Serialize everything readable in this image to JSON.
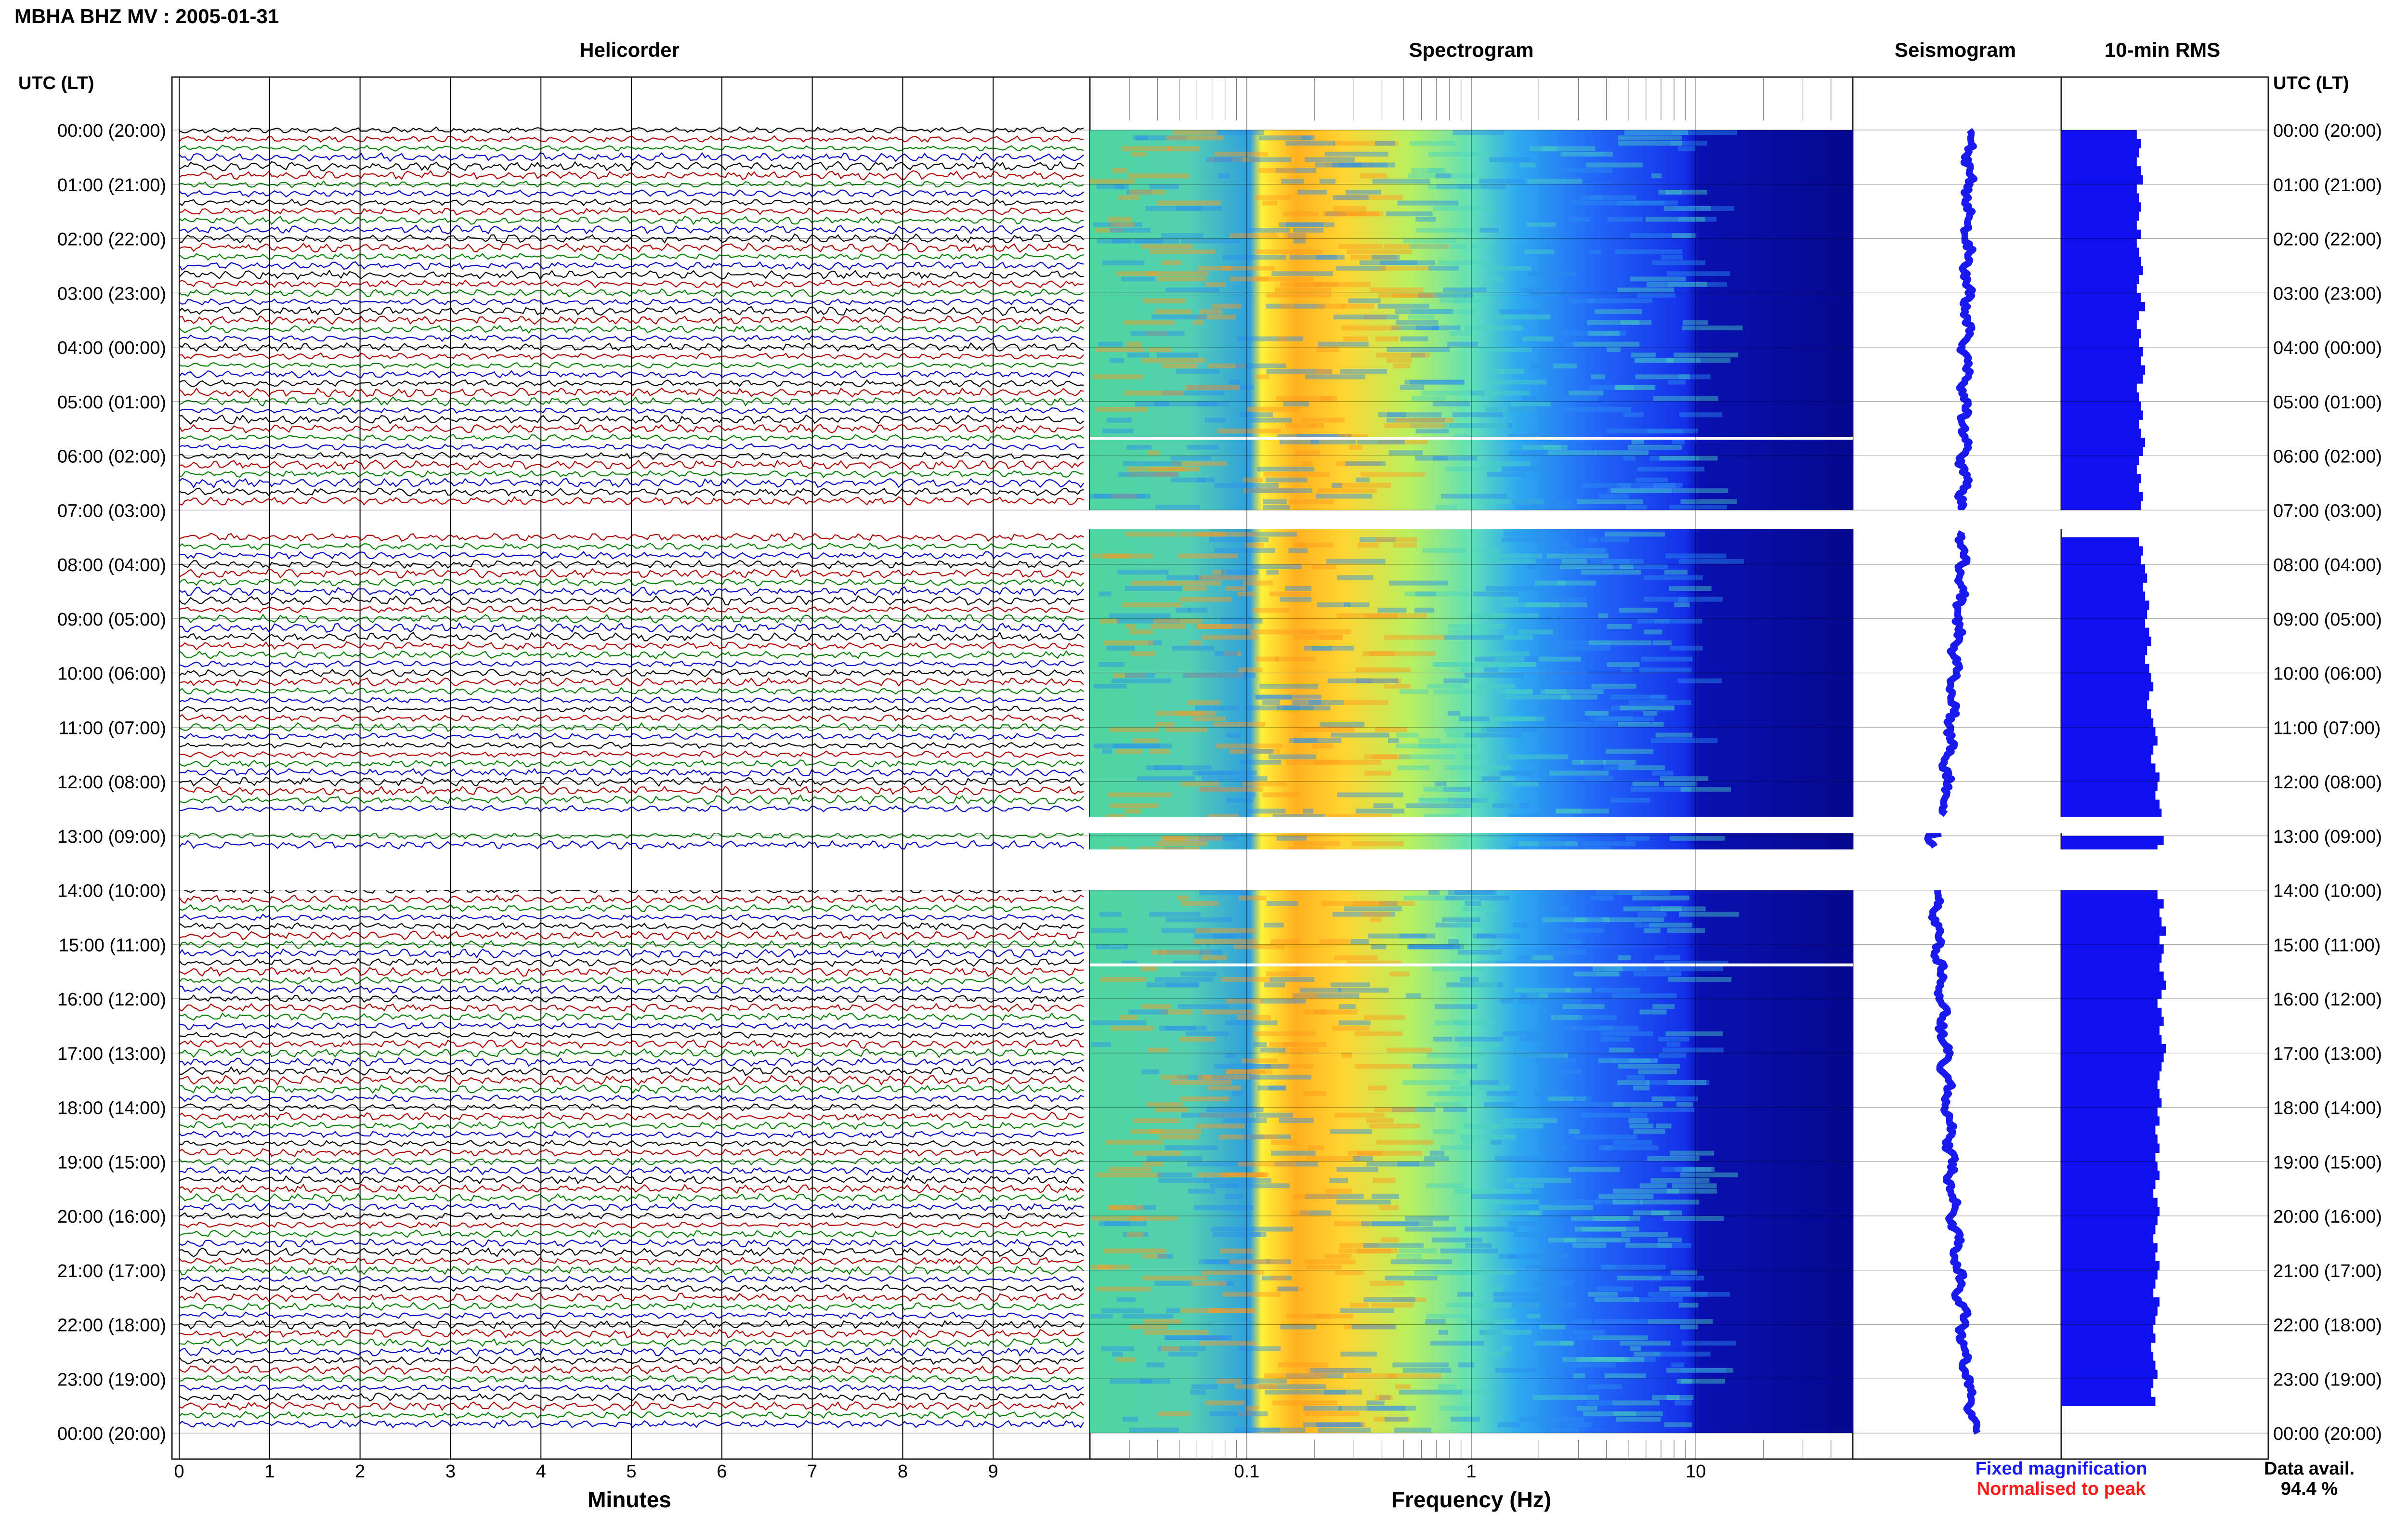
{
  "header": {
    "station_title": "MBHA BHZ MV : 2005-01-31"
  },
  "panels": {
    "helicorder": "Helicorder",
    "spectrogram": "Spectrogram",
    "seismogram": "Seismogram",
    "rms": "10-min RMS"
  },
  "axes": {
    "time_header_left": "UTC (LT)",
    "time_header_right": "UTC (LT)",
    "minutes_label": "Minutes",
    "frequency_label": "Frequency (Hz)",
    "minute_ticks": [
      "0",
      "1",
      "2",
      "3",
      "4",
      "5",
      "6",
      "7",
      "8",
      "9"
    ],
    "frequency_ticks": [
      "0.1",
      "1",
      "10"
    ],
    "hour_labels": [
      "00:00 (20:00)",
      "01:00 (21:00)",
      "02:00 (22:00)",
      "03:00 (23:00)",
      "04:00 (00:00)",
      "05:00 (01:00)",
      "06:00 (02:00)",
      "07:00 (03:00)",
      "08:00 (04:00)",
      "09:00 (05:00)",
      "10:00 (06:00)",
      "11:00 (07:00)",
      "12:00 (08:00)",
      "13:00 (09:00)",
      "14:00 (10:00)",
      "15:00 (11:00)",
      "16:00 (12:00)",
      "17:00 (13:00)",
      "18:00 (14:00)",
      "19:00 (15:00)",
      "20:00 (16:00)",
      "21:00 (17:00)",
      "22:00 (18:00)",
      "23:00 (19:00)",
      "00:00 (20:00)"
    ]
  },
  "legend": {
    "fixed_magnification": "Fixed magnification",
    "normalised_to_peak": "Normalised to peak",
    "fixed_color": "#1a1aff",
    "normalised_color": "#ff1a1a"
  },
  "availability": {
    "label": "Data avail.",
    "value": "94.4 %"
  },
  "colors": {
    "trace_cycle": [
      "#000000",
      "#b00000",
      "#008000",
      "#0000c8"
    ],
    "rms_bar": "#1010ee",
    "seismogram": "#1a1aee"
  },
  "chart_data": {
    "type": "heatmap",
    "x_unit_helicorder": "minutes",
    "helicorder_xlim": [
      0,
      10
    ],
    "frequency_xlim": [
      0.02,
      50
    ],
    "frequency_scale": "log",
    "time_range_hours": [
      0,
      24
    ],
    "data_gaps_hours": [
      [
        7.0,
        7.35
      ],
      [
        12.65,
        12.95
      ],
      [
        13.25,
        14.0
      ]
    ],
    "rms_10min_relative": [
      0.36,
      0.38,
      0.37,
      0.36,
      0.38,
      0.39,
      0.36,
      0.37,
      0.38,
      0.37,
      0.36,
      0.38,
      0.36,
      0.37,
      0.38,
      0.39,
      0.37,
      0.36,
      0.38,
      0.4,
      0.37,
      0.36,
      0.38,
      0.37,
      0.39,
      0.38,
      0.4,
      0.39,
      0.36,
      0.37,
      0.38,
      0.39,
      0.37,
      0.38,
      0.4,
      0.39,
      0.37,
      0.36,
      0.38,
      0.37,
      0.39,
      0.38,
      0.36,
      0.37,
      0.38,
      0.37,
      0.39,
      0.38,
      0.4,
      0.41,
      0.39,
      0.4,
      0.42,
      0.41,
      0.4,
      0.42,
      0.43,
      0.41,
      0.4,
      0.42,
      0.43,
      0.44,
      0.42,
      0.41,
      0.43,
      0.44,
      0.45,
      0.46,
      0.44,
      0.43,
      0.45,
      0.47,
      0.46,
      0.45,
      0.47,
      0.48,
      0.46,
      0.47,
      0.49,
      0.46,
      0.47,
      0.45,
      0.47,
      0.48,
      0.46,
      0.49,
      0.47,
      0.48,
      0.5,
      0.47,
      0.49,
      0.48,
      0.47,
      0.49,
      0.5,
      0.48,
      0.46,
      0.48,
      0.49,
      0.47,
      0.48,
      0.5,
      0.49,
      0.48,
      0.47,
      0.46,
      0.47,
      0.48,
      0.46,
      0.47,
      0.45,
      0.46,
      0.47,
      0.45,
      0.46,
      0.47,
      0.45,
      0.44,
      0.46,
      0.47,
      0.46,
      0.45,
      0.44,
      0.46,
      0.45,
      0.47,
      0.46,
      0.45,
      0.44,
      0.47,
      0.46,
      0.45,
      0.44,
      0.45,
      0.43,
      0.44,
      0.45,
      0.46,
      0.44,
      0.43,
      0.45
    ]
  }
}
